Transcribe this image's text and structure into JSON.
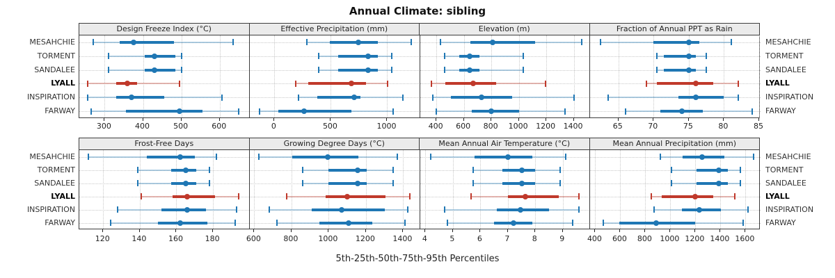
{
  "colors": {
    "series": "#1f77b4",
    "series_light": "rgba(31,119,180,0.35)",
    "highlight": "#c0392b",
    "highlight_light": "rgba(192,57,43,0.35)",
    "strip_bg": "#ebebeb",
    "panel_border": "#3c3c3c",
    "gridline": "#c8c8c8",
    "text": "#222222"
  },
  "chart_data": {
    "type": "errorbar_dotplot_grid",
    "title": "Annual Climate: sibling",
    "xlabel": "5th-25th-50th-75th-95th Percentiles",
    "percentiles": [
      5,
      25,
      50,
      75,
      95
    ],
    "sites": [
      "MESAHCHIE",
      "TORMENT",
      "SANDALEE",
      "LYALL",
      "INSPIRATION",
      "FARWAY"
    ],
    "highlight_site": "LYALL",
    "layout": {
      "rows": 2,
      "cols": 4,
      "gridlines": "dotted",
      "site_labels": "both-sides"
    },
    "panels": [
      {
        "title": "Design Freeze Index (°C)",
        "xlim": [
          234,
          678
        ],
        "ticks": [
          300,
          400,
          500,
          600
        ],
        "values": [
          [
            270,
            340,
            375,
            480,
            635
          ],
          [
            310,
            405,
            430,
            485,
            500
          ],
          [
            310,
            405,
            430,
            485,
            500
          ],
          [
            255,
            330,
            360,
            385,
            495
          ],
          [
            255,
            330,
            370,
            455,
            605
          ],
          [
            265,
            355,
            495,
            555,
            650
          ]
        ]
      },
      {
        "title": "Effective Precipitation (mm)",
        "xlim": [
          -220,
          1290
        ],
        "ticks": [
          0,
          500,
          1000
        ],
        "values": [
          [
            290,
            490,
            745,
            915,
            1210
          ],
          [
            390,
            565,
            830,
            915,
            1040
          ],
          [
            390,
            565,
            830,
            915,
            1040
          ],
          [
            190,
            300,
            680,
            810,
            1005
          ],
          [
            215,
            380,
            705,
            765,
            1140
          ],
          [
            -135,
            35,
            260,
            685,
            1055
          ]
        ]
      },
      {
        "title": "Elevation (m)",
        "xlim": [
          280,
          1520
        ],
        "ticks": [
          400,
          600,
          800,
          1000,
          1200,
          1400
        ],
        "values": [
          [
            430,
            645,
            810,
            1120,
            1460
          ],
          [
            460,
            565,
            640,
            715,
            1030
          ],
          [
            460,
            565,
            640,
            715,
            1030
          ],
          [
            365,
            465,
            670,
            835,
            1195
          ],
          [
            375,
            505,
            730,
            950,
            1400
          ],
          [
            400,
            655,
            800,
            1000,
            1335
          ]
        ]
      },
      {
        "title": "Fraction of Annual PPT as Rain",
        "xlim": [
          61,
          85.2
        ],
        "ticks": [
          65,
          70,
          75,
          80,
          85
        ],
        "values": [
          [
            62.5,
            70,
            75,
            76.5,
            81
          ],
          [
            70.5,
            71.5,
            75,
            76,
            77.5
          ],
          [
            70.5,
            71.5,
            75,
            76,
            77.5
          ],
          [
            69,
            70.5,
            76,
            78.5,
            82
          ],
          [
            63.5,
            73.5,
            76,
            80,
            82
          ],
          [
            66,
            71,
            74,
            77,
            84
          ]
        ]
      },
      {
        "title": "Frost-Free Days",
        "xlim": [
          107,
          200
        ],
        "ticks": [
          120,
          140,
          160,
          180
        ],
        "values": [
          [
            112,
            144,
            162,
            170,
            182
          ],
          [
            139,
            157,
            165,
            171,
            178
          ],
          [
            139,
            157,
            165,
            171,
            178
          ],
          [
            141,
            158,
            166,
            181,
            194
          ],
          [
            128,
            152,
            166,
            176,
            193
          ],
          [
            124,
            150,
            162,
            177,
            192
          ]
        ]
      },
      {
        "title": "Growing Degree Days (°C)",
        "xlim": [
          575,
          1490
        ],
        "ticks": [
          600,
          800,
          1000,
          1200,
          1400
        ],
        "values": [
          [
            625,
            805,
            995,
            1160,
            1370
          ],
          [
            860,
            1000,
            1155,
            1205,
            1345
          ],
          [
            860,
            1000,
            1155,
            1205,
            1345
          ],
          [
            775,
            985,
            1100,
            1305,
            1435
          ],
          [
            680,
            910,
            1070,
            1300,
            1425
          ],
          [
            720,
            950,
            1105,
            1235,
            1410
          ]
        ]
      },
      {
        "title": "Mean Annual Air Temperature (°C)",
        "xlim": [
          3.8,
          10.0
        ],
        "ticks": [
          4,
          5,
          6,
          7,
          8,
          9
        ],
        "values": [
          [
            4.2,
            5.8,
            7.0,
            7.9,
            9.1
          ],
          [
            5.75,
            6.8,
            7.5,
            8.0,
            8.9
          ],
          [
            5.75,
            6.8,
            7.5,
            8.0,
            8.9
          ],
          [
            5.65,
            7.0,
            7.65,
            8.85,
            9.6
          ],
          [
            4.7,
            6.6,
            7.45,
            8.5,
            9.6
          ],
          [
            4.8,
            6.5,
            7.2,
            7.9,
            9.35
          ]
        ]
      },
      {
        "title": "Mean Annual Precipitation (mm)",
        "xlim": [
          360,
          1720
        ],
        "ticks": [
          400,
          600,
          800,
          1000,
          1200,
          1400,
          1600
        ],
        "values": [
          [
            920,
            1100,
            1255,
            1430,
            1665
          ],
          [
            1010,
            1210,
            1385,
            1460,
            1560
          ],
          [
            1010,
            1210,
            1385,
            1460,
            1560
          ],
          [
            845,
            930,
            1200,
            1340,
            1515
          ],
          [
            870,
            1090,
            1230,
            1405,
            1620
          ],
          [
            465,
            590,
            885,
            1200,
            1580
          ]
        ]
      }
    ]
  }
}
